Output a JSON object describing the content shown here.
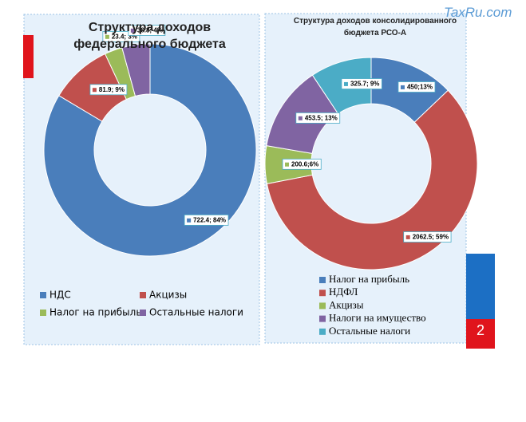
{
  "watermark": "TaxRu.com",
  "page_number": "2",
  "chart_data": [
    {
      "type": "donut",
      "title": "Структура доходов федерального бюджета",
      "categories": [
        "НДС",
        "Акцизы",
        "Налог на прибыль",
        "Остальные налоги"
      ],
      "values": [
        722.4,
        81.9,
        23.4,
        36.8
      ],
      "value_labels": [
        "722.4; 84%",
        "81.9; 9%",
        "23.4; 3%",
        "36.8; 4%"
      ],
      "colors": [
        "#4a7ebb",
        "#c0504d",
        "#9bbb59",
        "#8064a2"
      ]
    },
    {
      "type": "donut",
      "title": "Структура доходов консолидированного бюджета РСО-А",
      "categories": [
        "Налог на прибыль",
        "НДФЛ",
        "Акцизы",
        "Налоги на имущество",
        "Остальные налоги"
      ],
      "values": [
        450,
        2062.5,
        200.6,
        453.5,
        325.7
      ],
      "value_labels": [
        "450;13%",
        "2062.5; 59%",
        "200.6;6%",
        "453.5; 13%",
        "325.7; 9%"
      ],
      "colors": [
        "#4a7ebb",
        "#c0504d",
        "#9bbb59",
        "#8064a2",
        "#4bacc6"
      ]
    }
  ]
}
